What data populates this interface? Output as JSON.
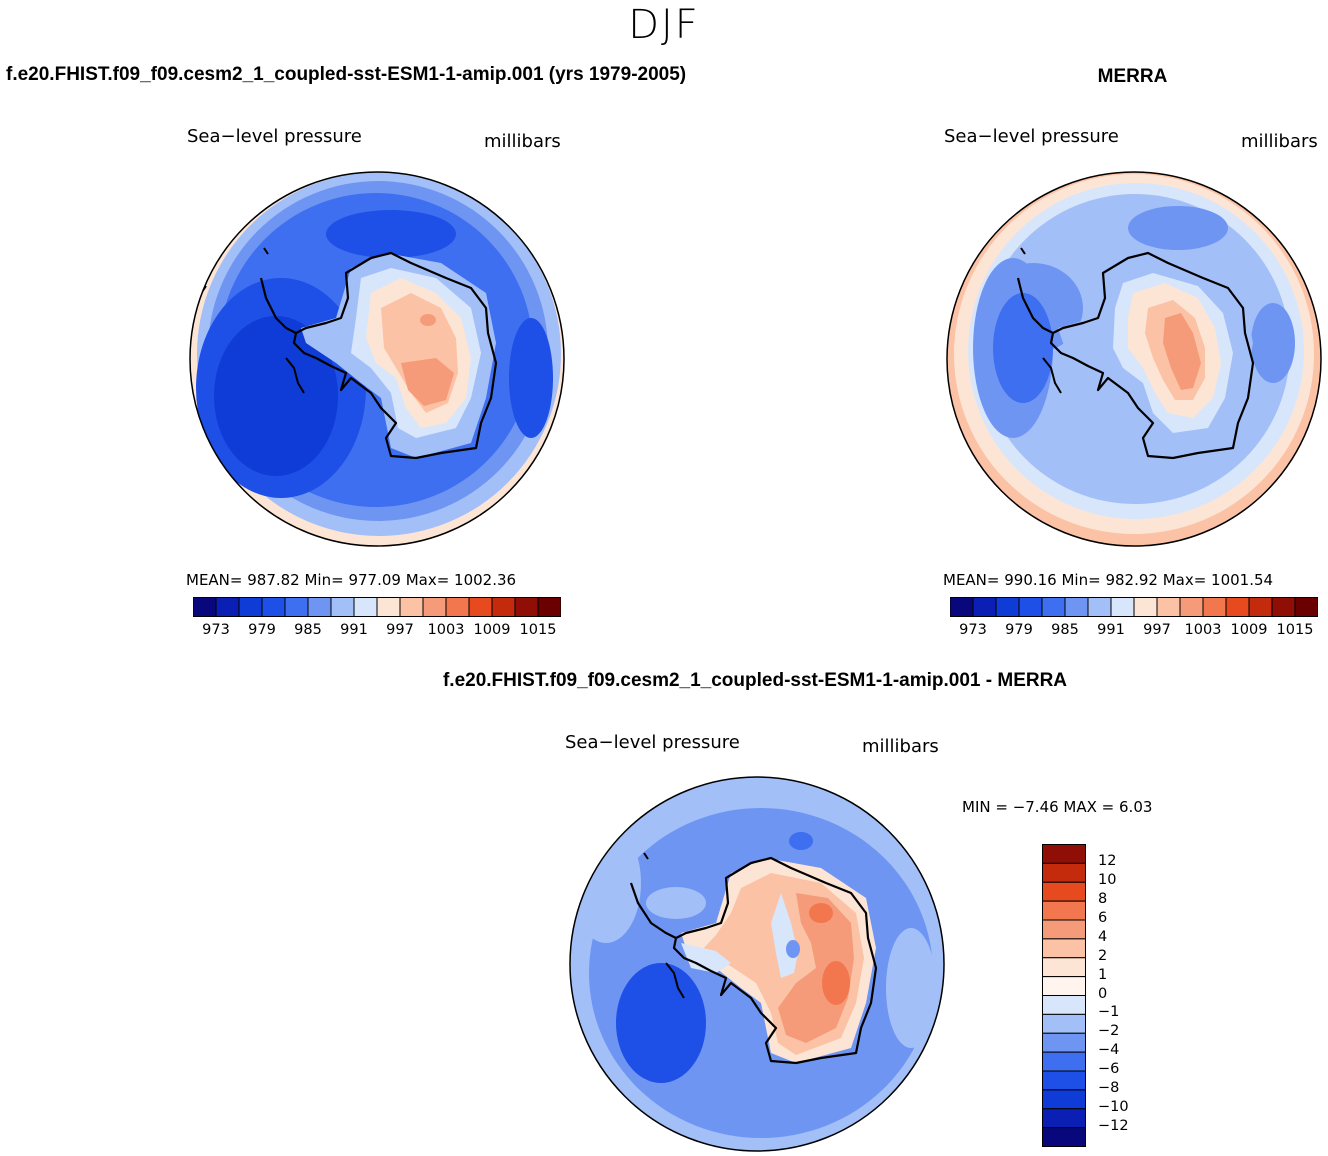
{
  "figure": {
    "season": "DJF",
    "case_title": "f.e20.FHIST.f09_f09.cesm2_1_coupled-sst-ESM1-1-amip.001 (yrs 1979-2005)",
    "obs_title": "MERRA",
    "diff_title": "f.e20.FHIST.f09_f09.cesm2_1_coupled-sst-ESM1-1-amip.001 - MERRA"
  },
  "panels": {
    "model": {
      "variable": "Sea−level pressure",
      "units": "millibars",
      "stats": "MEAN= 987.82   Min= 977.09   Max= 1002.36"
    },
    "obs": {
      "variable": "Sea−level pressure",
      "units": "millibars",
      "stats": "MEAN= 990.16   Min= 982.92   Max= 1001.54"
    },
    "diff": {
      "variable": "Sea−level pressure",
      "units": "millibars",
      "stats": "MIN =   −7.46  MAX =     6.03"
    }
  },
  "chart_data": [
    {
      "type": "heatmap",
      "title": "Sea-level pressure",
      "projection": "south polar stereographic",
      "units": "millibars",
      "stats": {
        "mean": 987.82,
        "min": 977.09,
        "max": 1002.36
      },
      "colorbar": {
        "levels": [
          973,
          976,
          979,
          982,
          985,
          988,
          991,
          994,
          997,
          1000,
          1003,
          1006,
          1009,
          1012,
          1015
        ],
        "tick_labels": [
          "973",
          "979",
          "985",
          "991",
          "997",
          "1003",
          "1009",
          "1015"
        ],
        "colors": [
          "#08087c",
          "#0b1fb5",
          "#0f3bd6",
          "#1e4fe6",
          "#3d6ff0",
          "#6f95f3",
          "#a3bff8",
          "#d7e6fb",
          "#fde5d6",
          "#fbc2a5",
          "#f69b79",
          "#f2774f",
          "#e64a1e",
          "#c42a0c",
          "#8f0f07",
          "#6b0000"
        ]
      }
    },
    {
      "type": "heatmap",
      "title": "Sea-level pressure",
      "projection": "south polar stereographic",
      "units": "millibars",
      "stats": {
        "mean": 990.16,
        "min": 982.92,
        "max": 1001.54
      },
      "colorbar": {
        "levels": [
          973,
          976,
          979,
          982,
          985,
          988,
          991,
          994,
          997,
          1000,
          1003,
          1006,
          1009,
          1012,
          1015
        ],
        "tick_labels": [
          "973",
          "979",
          "985",
          "991",
          "997",
          "1003",
          "1009",
          "1015"
        ],
        "colors": [
          "#08087c",
          "#0b1fb5",
          "#0f3bd6",
          "#1e4fe6",
          "#3d6ff0",
          "#6f95f3",
          "#a3bff8",
          "#d7e6fb",
          "#fde5d6",
          "#fbc2a5",
          "#f69b79",
          "#f2774f",
          "#e64a1e",
          "#c42a0c",
          "#8f0f07",
          "#6b0000"
        ]
      }
    },
    {
      "type": "heatmap",
      "title": "Sea-level pressure",
      "projection": "south polar stereographic",
      "units": "millibars",
      "stats": {
        "min": -7.46,
        "max": 6.03
      },
      "colorbar": {
        "levels": [
          -12,
          -10,
          -8,
          -6,
          -4,
          -2,
          -1,
          0,
          1,
          2,
          4,
          6,
          8,
          10,
          12
        ],
        "tick_labels": [
          "12",
          "10",
          "8",
          "6",
          "4",
          "2",
          "1",
          "0",
          "−1",
          "−2",
          "−4",
          "−6",
          "−8",
          "−10",
          "−12"
        ],
        "colors_top_to_bottom": [
          "#8f0f07",
          "#c42a0c",
          "#e64a1e",
          "#f2774f",
          "#f69b79",
          "#fbc2a5",
          "#fde5d6",
          "#fff5ee",
          "#d7e6fb",
          "#a3bff8",
          "#6f95f3",
          "#3d6ff0",
          "#1e4fe6",
          "#0f3bd6",
          "#0b1fb5",
          "#08087c"
        ]
      }
    }
  ]
}
